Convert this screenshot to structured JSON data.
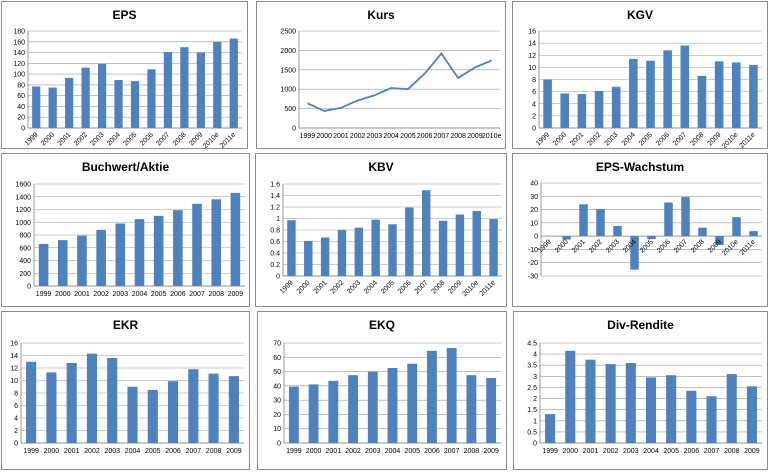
{
  "colors": {
    "series": "#4f81bd",
    "grid": "#9a9a9a",
    "border": "#8c8c8c"
  },
  "chart_data": [
    {
      "id": "eps",
      "type": "bar",
      "title": "EPS",
      "categories": [
        "1999",
        "2000",
        "2001",
        "2002",
        "2003",
        "2004",
        "2005",
        "2006",
        "2007",
        "2008",
        "2009",
        "2010e",
        "2011e"
      ],
      "values": [
        77,
        75,
        93,
        112,
        119,
        89,
        87,
        109,
        141,
        150,
        140,
        160,
        166
      ],
      "ylim": [
        0,
        180
      ],
      "ystep": 20,
      "xlabel": "",
      "ylabel": "",
      "grid": true
    },
    {
      "id": "kurs",
      "type": "line",
      "title": "Kurs",
      "categories": [
        "1999",
        "2000",
        "2001",
        "2002",
        "2003",
        "2004",
        "2005",
        "2006",
        "2007",
        "2008",
        "2009",
        "2010e"
      ],
      "values": [
        640,
        440,
        520,
        710,
        840,
        1030,
        1000,
        1400,
        1920,
        1290,
        1560,
        1740
      ],
      "ylim": [
        0,
        2500
      ],
      "ystep": 500,
      "xlabel": "",
      "ylabel": "",
      "grid": true
    },
    {
      "id": "kgv",
      "type": "bar",
      "title": "KGV",
      "categories": [
        "1999",
        "2000",
        "2001",
        "2002",
        "2003",
        "2004",
        "2005",
        "2006",
        "2007",
        "2008",
        "2009",
        "2010e",
        "2011e"
      ],
      "values": [
        8,
        5.7,
        5.6,
        6.1,
        6.8,
        11.4,
        11.1,
        12.8,
        13.6,
        8.6,
        11.0,
        10.8,
        10.4
      ],
      "ylim": [
        0,
        16
      ],
      "ystep": 2,
      "xlabel": "",
      "ylabel": "",
      "grid": true
    },
    {
      "id": "buchwert",
      "type": "bar",
      "title": "Buchwert/Aktie",
      "categories": [
        "1999",
        "2000",
        "2001",
        "2002",
        "2003",
        "2004",
        "2005",
        "2006",
        "2007",
        "2008",
        "2009"
      ],
      "values": [
        660,
        720,
        790,
        880,
        980,
        1050,
        1100,
        1190,
        1290,
        1360,
        1460
      ],
      "ylim": [
        0,
        1600
      ],
      "ystep": 200,
      "xlabel": "",
      "ylabel": "",
      "grid": true
    },
    {
      "id": "kbv",
      "type": "bar",
      "title": "KBV",
      "categories": [
        "1999",
        "2000",
        "2001",
        "2002",
        "2003",
        "2004",
        "2005",
        "2006",
        "2007",
        "2008",
        "2009",
        "2010e",
        "2011e"
      ],
      "values": [
        0.97,
        0.61,
        0.67,
        0.8,
        0.84,
        0.98,
        0.9,
        1.19,
        1.49,
        0.96,
        1.07,
        1.13,
        0.99
      ],
      "ylim": [
        0,
        1.6
      ],
      "ystep": 0.2,
      "xlabel": "",
      "ylabel": "",
      "grid": true
    },
    {
      "id": "eps-wachstum",
      "type": "bar",
      "title": "EPS-Wachstum",
      "categories": [
        "1999",
        "2000",
        "2001",
        "2002",
        "2003",
        "2004",
        "2005",
        "2006",
        "2007",
        "2008",
        "2009",
        "2010e",
        "2011e"
      ],
      "values": [
        0,
        -2.6,
        24,
        20.4,
        7.7,
        -25.2,
        -2.2,
        25.3,
        29.4,
        6.4,
        -6.7,
        14.3,
        3.8
      ],
      "ylim": [
        -30,
        40
      ],
      "ystep": 10,
      "xlabel": "",
      "ylabel": "",
      "grid": true
    },
    {
      "id": "ekr",
      "type": "bar",
      "title": "EKR",
      "categories": [
        "1999",
        "2000",
        "2001",
        "2002",
        "2003",
        "2004",
        "2005",
        "2006",
        "2007",
        "2008",
        "2009"
      ],
      "values": [
        13.0,
        11.3,
        12.8,
        14.3,
        13.6,
        9.0,
        8.5,
        9.9,
        11.8,
        11.1,
        10.7
      ],
      "ylim": [
        0,
        16
      ],
      "ystep": 2,
      "xlabel": "",
      "ylabel": "",
      "grid": true
    },
    {
      "id": "ekq",
      "type": "bar",
      "title": "EKQ",
      "categories": [
        "1999",
        "2000",
        "2001",
        "2002",
        "2003",
        "2004",
        "2005",
        "2006",
        "2007",
        "2008",
        "2009"
      ],
      "values": [
        39.5,
        41,
        43.5,
        47.5,
        50,
        52.5,
        55.5,
        64.5,
        66.5,
        47.5,
        45.5
      ],
      "ylim": [
        0,
        70
      ],
      "ystep": 10,
      "xlabel": "",
      "ylabel": "",
      "grid": true
    },
    {
      "id": "div-rendite",
      "type": "bar",
      "title": "Div-Rendite",
      "categories": [
        "1999",
        "2000",
        "2001",
        "2002",
        "2003",
        "2004",
        "2005",
        "2006",
        "2007",
        "2008",
        "2009"
      ],
      "values": [
        1.3,
        4.15,
        3.75,
        3.55,
        3.6,
        2.95,
        3.05,
        2.35,
        2.1,
        3.1,
        2.55
      ],
      "ylim": [
        0,
        4.5
      ],
      "ystep": 0.5,
      "xlabel": "",
      "ylabel": "",
      "grid": true
    }
  ]
}
